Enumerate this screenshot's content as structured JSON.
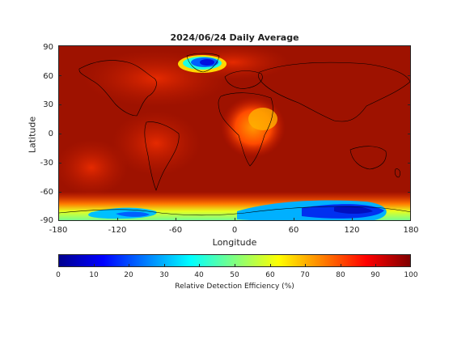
{
  "map": {
    "title": "2024/06/24 Daily Average",
    "xlabel": "Longitude",
    "ylabel": "Latitude",
    "xticks": [
      "-180",
      "-120",
      "-60",
      "0",
      "60",
      "120",
      "180"
    ],
    "yticks": [
      "90",
      "60",
      "30",
      "0",
      "-30",
      "-60",
      "-90"
    ],
    "projection": "equirectangular",
    "base_color": "#9e1200",
    "colorbar": {
      "label": "Relative Detection Efficiency (%)",
      "ticks": [
        "0",
        "10",
        "20",
        "30",
        "40",
        "50",
        "60",
        "70",
        "80",
        "90",
        "100"
      ],
      "colormap": "jet",
      "range": [
        0,
        100
      ]
    }
  }
}
